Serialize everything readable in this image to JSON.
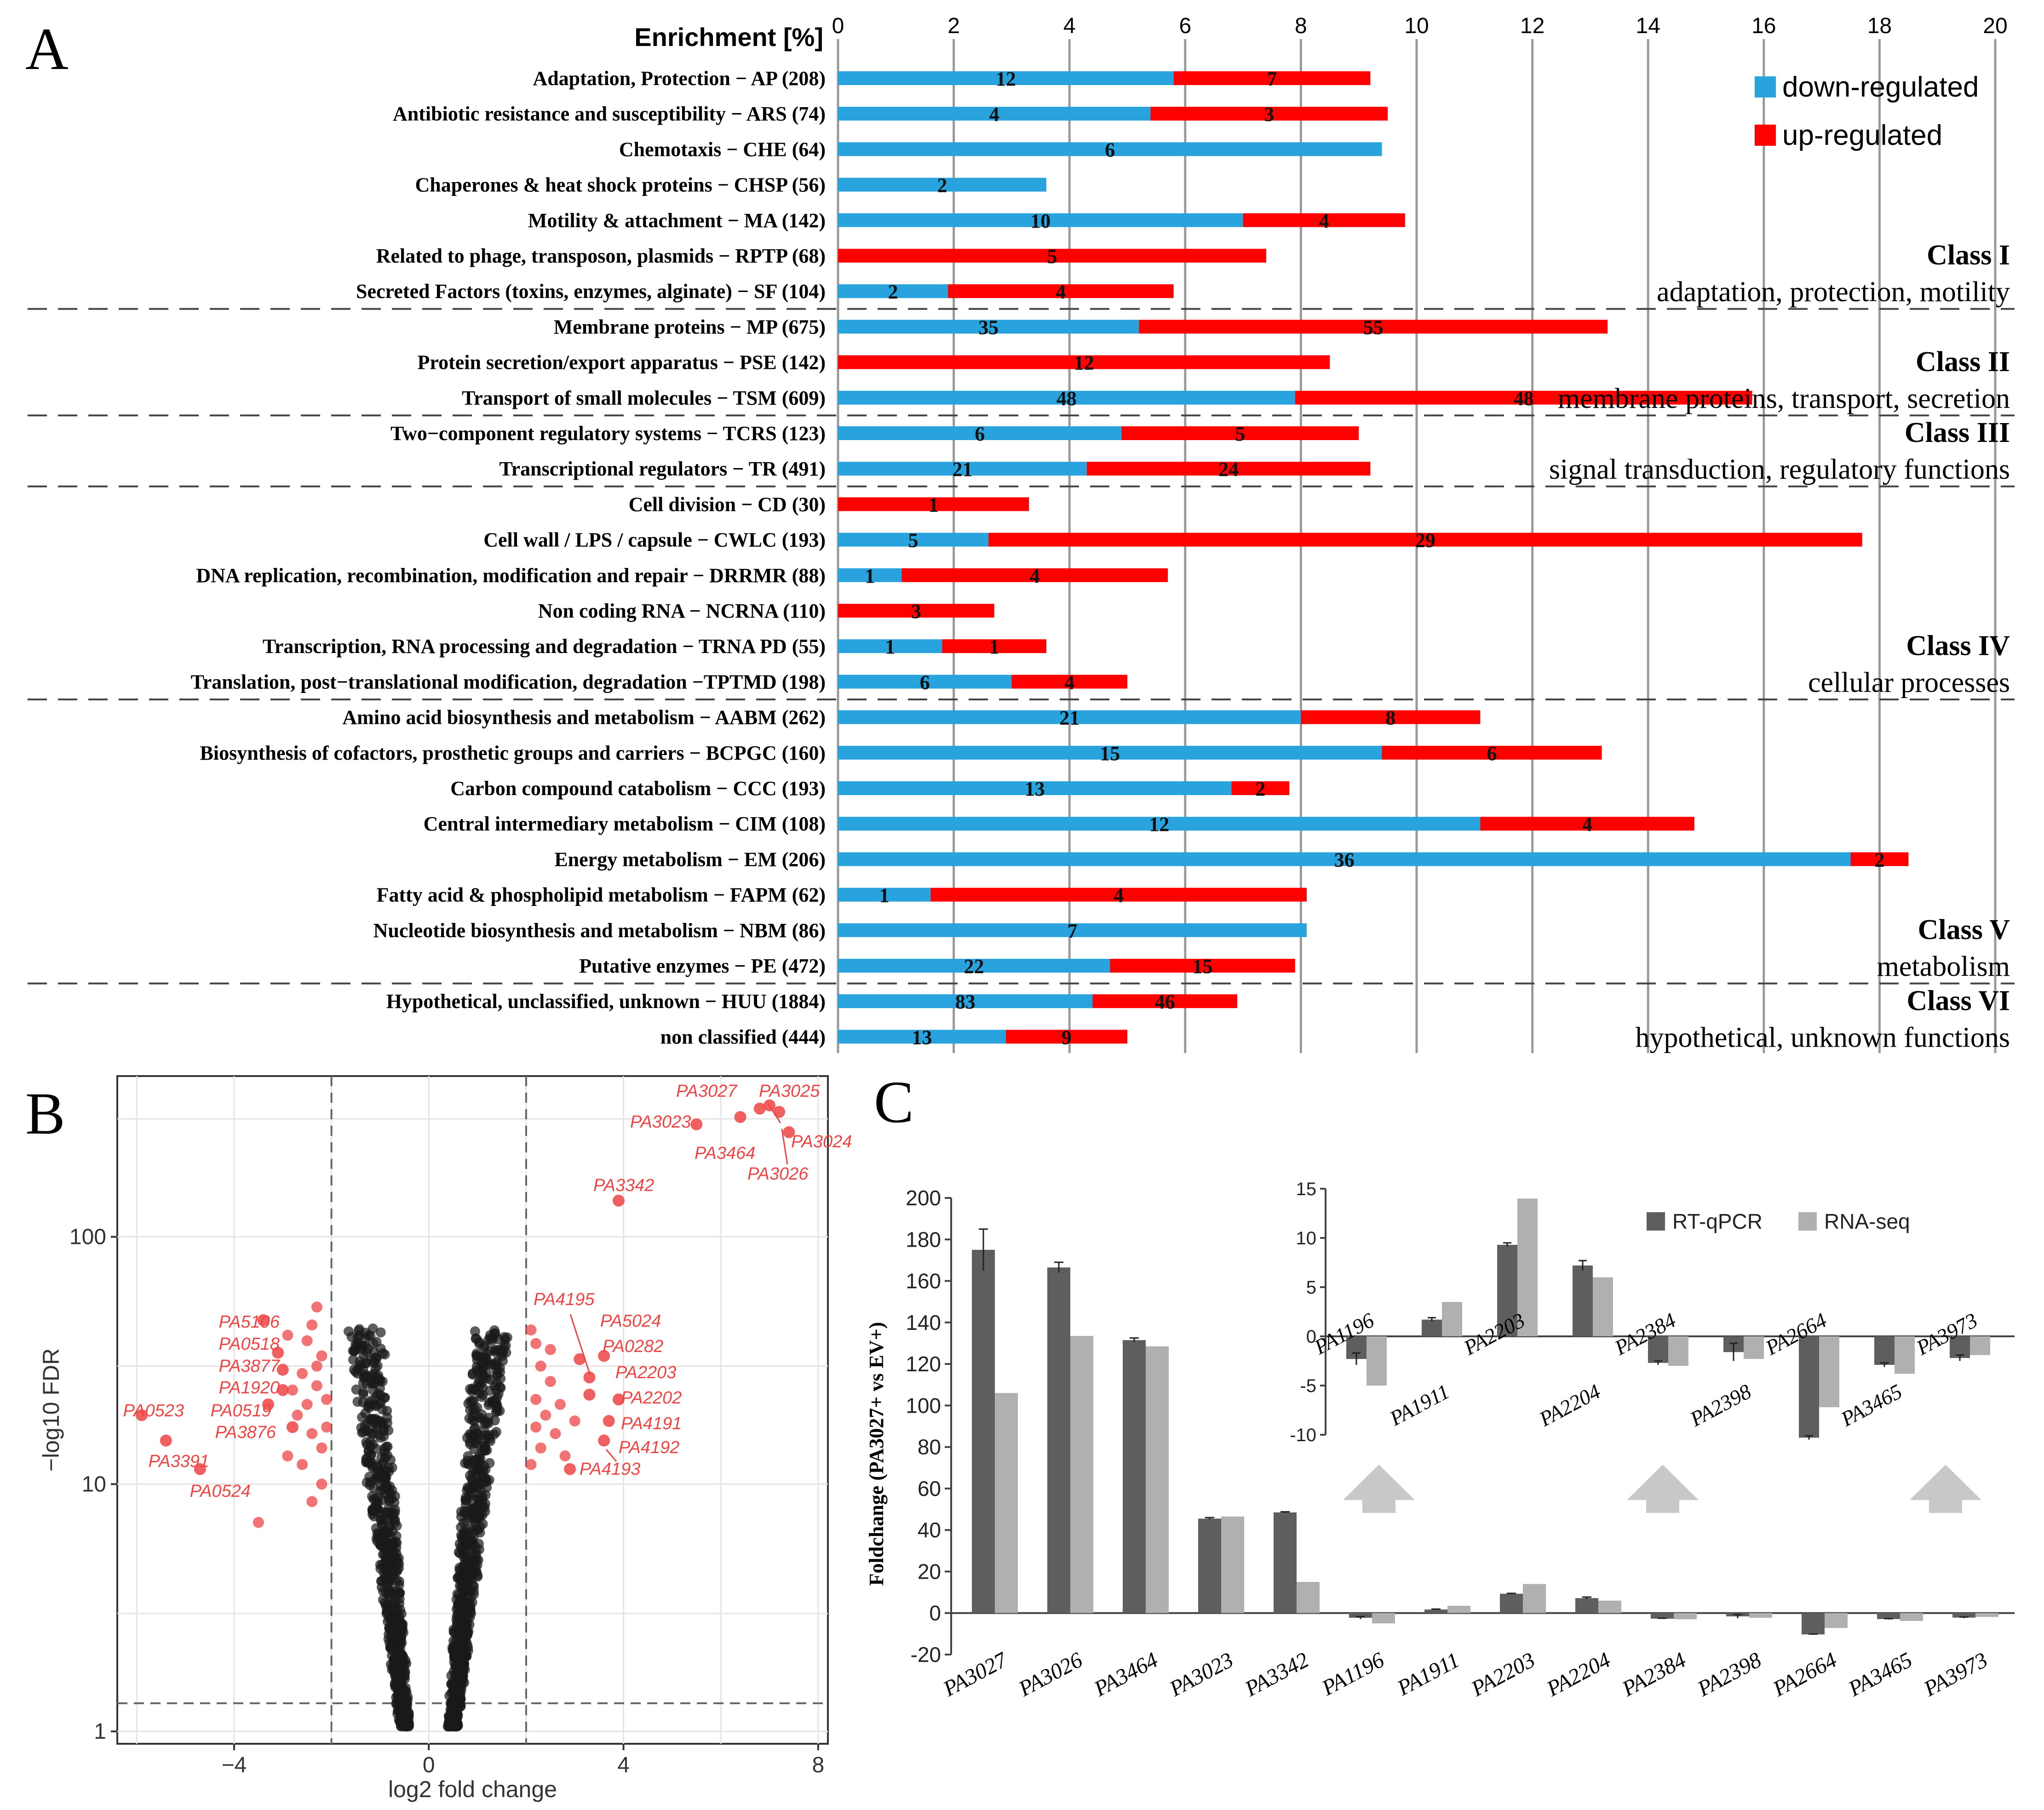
{
  "colors": {
    "down": "#29a3dd",
    "up": "#ff0000",
    "grid": "#999999",
    "volcano_sig": "#ee4444",
    "volcano_ns": "#1a1a1a",
    "qpcr": "#5e5e5e",
    "rnaseq": "#b0b0b0",
    "arrow": "#c8c8c8"
  },
  "chart_data": [
    {
      "panel": "A",
      "type": "bar",
      "orientation": "horizontal",
      "stacked": true,
      "xlabel": "Enrichment [%]",
      "xlim": [
        0,
        20
      ],
      "xticks": [
        "0",
        "2",
        "4",
        "6",
        "8",
        "10",
        "12",
        "14",
        "16",
        "18",
        "20"
      ],
      "legend": [
        {
          "name": "down-regulated",
          "key": "down"
        },
        {
          "name": "up-regulated",
          "key": "up"
        }
      ],
      "categories": [
        {
          "label": "Adaptation, Protection − AP (208)",
          "down": 5.8,
          "up": 3.4,
          "down_n": "12",
          "up_n": "7"
        },
        {
          "label": "Antibiotic resistance and susceptibility  − ARS (74)",
          "down": 5.4,
          "up": 4.1,
          "down_n": "4",
          "up_n": "3"
        },
        {
          "label": "Chemotaxis − CHE (64)",
          "down": 9.4,
          "up": 0,
          "down_n": "6",
          "up_n": ""
        },
        {
          "label": "Chaperones & heat shock proteins − CHSP (56)",
          "down": 3.6,
          "up": 0,
          "down_n": "2",
          "up_n": ""
        },
        {
          "label": "Motility & attachment − MA (142)",
          "down": 7.0,
          "up": 2.8,
          "down_n": "10",
          "up_n": "4"
        },
        {
          "label": "Related to phage, transposon, plasmids − RPTP (68)",
          "down": 0,
          "up": 7.4,
          "down_n": "",
          "up_n": "5"
        },
        {
          "label": "Secreted Factors (toxins, enzymes, alginate) − SF (104)",
          "down": 1.9,
          "up": 3.9,
          "down_n": "2",
          "up_n": "4"
        },
        {
          "label": "Membrane proteins − MP (675)",
          "down": 5.2,
          "up": 8.1,
          "down_n": "35",
          "up_n": "55"
        },
        {
          "label": "Protein secretion/export apparatus − PSE (142)",
          "down": 0,
          "up": 8.5,
          "down_n": "",
          "up_n": "12"
        },
        {
          "label": "Transport of small molecules − TSM (609)",
          "down": 7.9,
          "up": 7.9,
          "down_n": "48",
          "up_n": "48"
        },
        {
          "label": "Two−component regulatory systems − TCRS (123)",
          "down": 4.9,
          "up": 4.1,
          "down_n": "6",
          "up_n": "5"
        },
        {
          "label": "Transcriptional regulators − TR (491)",
          "down": 4.3,
          "up": 4.9,
          "down_n": "21",
          "up_n": "24"
        },
        {
          "label": "Cell division − CD (30)",
          "down": 0,
          "up": 3.3,
          "down_n": "",
          "up_n": "1"
        },
        {
          "label": "Cell wall / LPS / capsule − CWLC (193)",
          "down": 2.6,
          "up": 15.1,
          "down_n": "5",
          "up_n": "29"
        },
        {
          "label": "DNA replication, recombination, modification and repair − DRRMR (88)",
          "down": 1.1,
          "up": 4.6,
          "down_n": "1",
          "up_n": "4"
        },
        {
          "label": "Non coding RNA − NCRNA (110)",
          "down": 0,
          "up": 2.7,
          "down_n": "",
          "up_n": "3"
        },
        {
          "label": "Transcription, RNA processing and degradation − TRNA PD (55)",
          "down": 1.8,
          "up": 1.8,
          "down_n": "1",
          "up_n": "1"
        },
        {
          "label": "Translation, post−translational modification, degradation  −TPTMD (198)",
          "down": 3.0,
          "up": 2.0,
          "down_n": "6",
          "up_n": "4"
        },
        {
          "label": "Amino acid biosynthesis and metabolism − AABM (262)",
          "down": 8.0,
          "up": 3.1,
          "down_n": "21",
          "up_n": "8"
        },
        {
          "label": "Biosynthesis of cofactors, prosthetic groups and carriers − BCPGC (160)",
          "down": 9.4,
          "up": 3.8,
          "down_n": "15",
          "up_n": "6"
        },
        {
          "label": "Carbon compound catabolism − CCC (193)",
          "down": 6.8,
          "up": 1.0,
          "down_n": "13",
          "up_n": "2"
        },
        {
          "label": "Central intermediary metabolism − CIM (108)",
          "down": 11.1,
          "up": 3.7,
          "down_n": "12",
          "up_n": "4"
        },
        {
          "label": "Energy metabolism − EM (206)",
          "down": 17.5,
          "up": 1.0,
          "down_n": "36",
          "up_n": "2"
        },
        {
          "label": "Fatty acid & phospholipid metabolism − FAPM (62)",
          "down": 1.6,
          "up": 6.5,
          "down_n": "1",
          "up_n": "4"
        },
        {
          "label": "Nucleotide biosynthesis and metabolism − NBM (86)",
          "down": 8.1,
          "up": 0,
          "down_n": "7",
          "up_n": ""
        },
        {
          "label": "Putative enzymes − PE (472)",
          "down": 4.7,
          "up": 3.2,
          "down_n": "22",
          "up_n": "15"
        },
        {
          "label": "Hypothetical, unclassified, unknown − HUU (1884)",
          "down": 4.4,
          "up": 2.5,
          "down_n": "83",
          "up_n": "46"
        },
        {
          "label": "non classified (444)",
          "down": 2.9,
          "up": 2.1,
          "down_n": "13",
          "up_n": "9"
        }
      ],
      "classes": [
        {
          "name": "Class I",
          "desc": "adaptation, protection, motility",
          "first": 0,
          "last": 6
        },
        {
          "name": "Class II",
          "desc": "membrane proteins, transport, secretion",
          "first": 7,
          "last": 9
        },
        {
          "name": "Class III",
          "desc": "signal transduction, regulatory functions",
          "first": 10,
          "last": 11
        },
        {
          "name": "Class IV",
          "desc": "cellular processes",
          "first": 12,
          "last": 17
        },
        {
          "name": "Class V",
          "desc": "metabolism",
          "first": 18,
          "last": 25
        },
        {
          "name": "Class VI",
          "desc": "hypothetical, unknown functions",
          "first": 26,
          "last": 27
        }
      ]
    },
    {
      "panel": "B",
      "type": "scatter",
      "xlabel": "log2 fold change",
      "ylabel": "−log10 FDR",
      "xlim": [
        -6.4,
        8.2
      ],
      "ylog": true,
      "ylim_log10": [
        -0.05,
        2.65
      ],
      "xticks": [
        "−4",
        "0",
        "4",
        "8"
      ],
      "yticks": [
        "1",
        "10",
        "100"
      ],
      "thresholds": {
        "log2fc": [
          -2,
          2
        ],
        "fdr_line": 1.3
      },
      "labeled_points": [
        {
          "gene": "PA3027",
          "x": 6.8,
          "y": 330
        },
        {
          "gene": "PA3025",
          "x": 7.0,
          "y": 340
        },
        {
          "gene": "PA3023",
          "x": 5.5,
          "y": 285
        },
        {
          "gene": "PA3464",
          "x": 6.4,
          "y": 305
        },
        {
          "gene": "PA3024",
          "x": 7.4,
          "y": 265
        },
        {
          "gene": "PA3026",
          "x": 7.2,
          "y": 320
        },
        {
          "gene": "PA3342",
          "x": 3.9,
          "y": 140
        },
        {
          "gene": "PA4195",
          "x": 3.3,
          "y": 23
        },
        {
          "gene": "PA5024",
          "x": 3.1,
          "y": 32
        },
        {
          "gene": "PA0282",
          "x": 3.3,
          "y": 27
        },
        {
          "gene": "PA2203",
          "x": 3.6,
          "y": 33
        },
        {
          "gene": "PA2202",
          "x": 3.9,
          "y": 22
        },
        {
          "gene": "PA4191",
          "x": 3.7,
          "y": 18
        },
        {
          "gene": "PA4192",
          "x": 3.6,
          "y": 15
        },
        {
          "gene": "PA4193",
          "x": 2.9,
          "y": 11.5
        },
        {
          "gene": "PA5106",
          "x": -3.4,
          "y": 46
        },
        {
          "gene": "PA0518",
          "x": -3.1,
          "y": 34
        },
        {
          "gene": "PA3877",
          "x": -3.0,
          "y": 29
        },
        {
          "gene": "PA1920",
          "x": -3.0,
          "y": 24
        },
        {
          "gene": "PA0519",
          "x": -3.3,
          "y": 21
        },
        {
          "gene": "PA3876",
          "x": -2.8,
          "y": 17
        },
        {
          "gene": "PA0523",
          "x": -5.9,
          "y": 19
        },
        {
          "gene": "PA3391",
          "x": -5.4,
          "y": 15
        },
        {
          "gene": "PA0524",
          "x": -4.7,
          "y": 11.5
        }
      ]
    },
    {
      "panel": "C",
      "type": "bar",
      "ylabel": "Foldchange (PA3027+ vs EV+)",
      "ylim": [
        -20,
        200
      ],
      "yticks": [
        "-20",
        "0",
        "20",
        "40",
        "60",
        "80",
        "100",
        "120",
        "140",
        "160",
        "180",
        "200"
      ],
      "legend": [
        {
          "name": "RT-qPCR",
          "key": "qpcr"
        },
        {
          "name": "RNA-seq",
          "key": "rnaseq"
        }
      ],
      "categories": [
        "PA3027",
        "PA3026",
        "PA3464",
        "PA3023",
        "PA3342",
        "PA1196",
        "PA1911",
        "PA2203",
        "PA2204",
        "PA2384",
        "PA2398",
        "PA2664",
        "PA3465",
        "PA3973"
      ],
      "series": [
        {
          "name": "RT-qPCR",
          "values": [
            175,
            166.5,
            131.5,
            45.5,
            48.5,
            -2.3,
            1.7,
            9.3,
            7.2,
            -2.7,
            -1.6,
            -10.3,
            -2.9,
            -2.2
          ],
          "errors": [
            10,
            2.5,
            1,
            0.5,
            0.3,
            0.6,
            0.2,
            0.2,
            0.5,
            0.2,
            0.9,
            0.2,
            0.2,
            0.3
          ]
        },
        {
          "name": "RNA-seq",
          "values": [
            106,
            133.5,
            128.5,
            46.5,
            15,
            -5,
            3.5,
            14,
            6,
            -3,
            -2.3,
            -7.2,
            -3.8,
            -1.9
          ]
        }
      ],
      "inset": {
        "ylim": [
          -10,
          15
        ],
        "yticks": [
          "-10",
          "-5",
          "0",
          "5",
          "10",
          "15"
        ],
        "categories": [
          "PA1196",
          "PA1911",
          "PA2203",
          "PA2204",
          "PA2384",
          "PA2398",
          "PA2664",
          "PA3465",
          "PA3973"
        ]
      }
    }
  ],
  "panels": {
    "a": "A",
    "b": "B",
    "c": "C"
  }
}
